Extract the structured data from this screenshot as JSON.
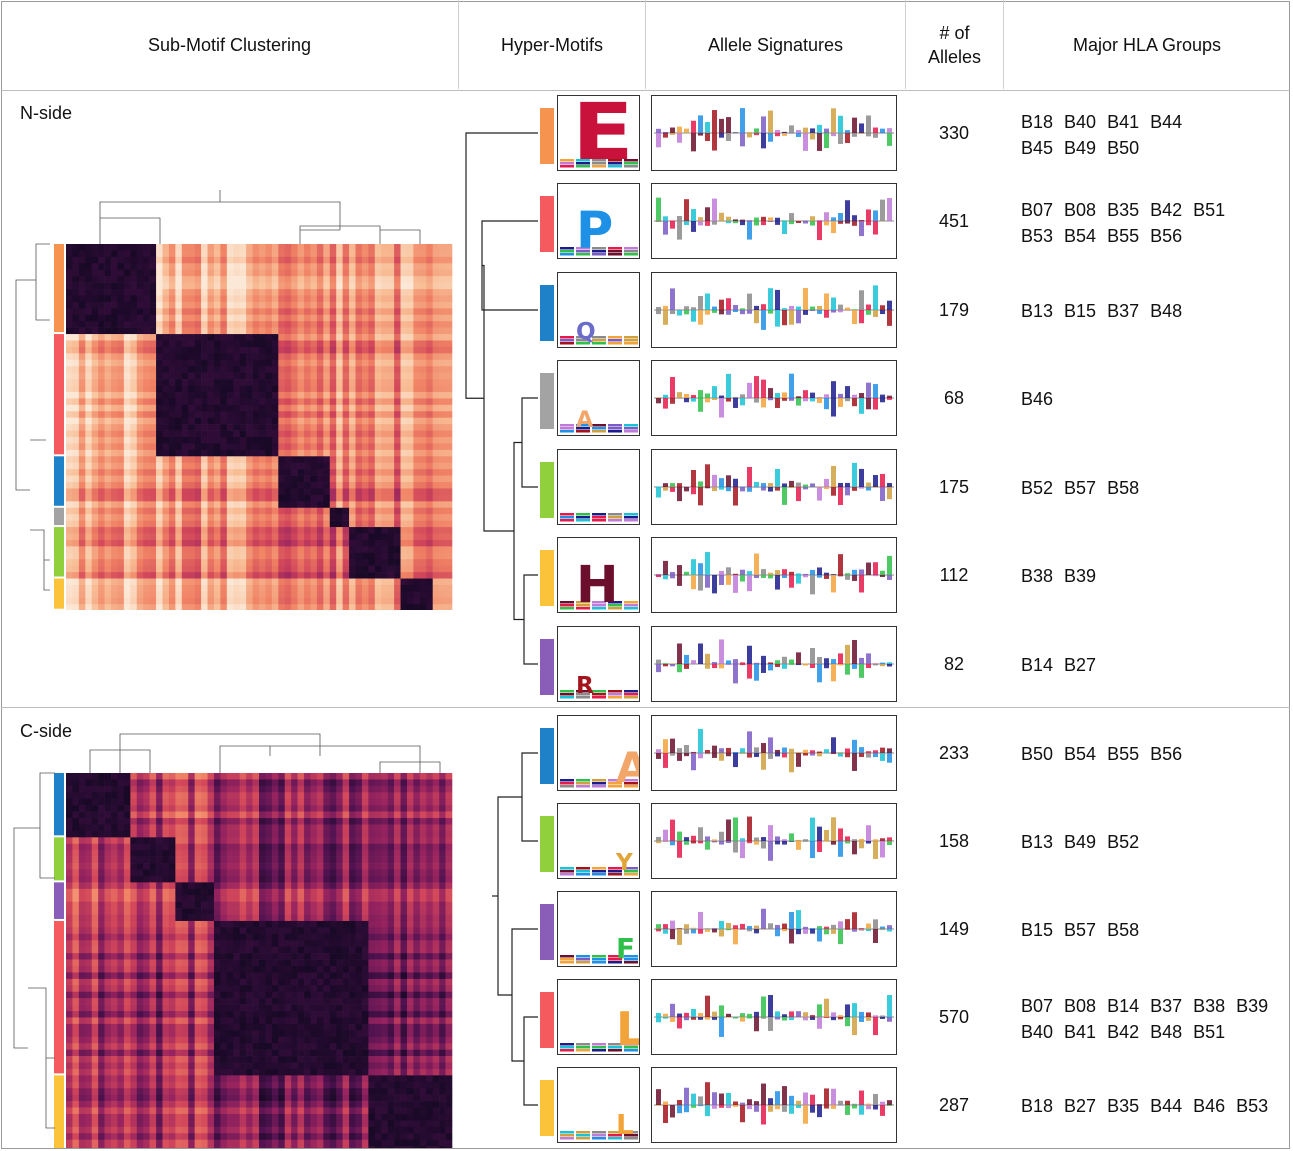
{
  "headers": {
    "clustering": "Sub-Motif Clustering",
    "hyper_motifs": "Hyper-Motifs",
    "signatures": "Allele Signatures",
    "num_alleles_line1": "# of",
    "num_alleles_line2": "Alleles",
    "hla_groups": "Major HLA Groups"
  },
  "sections": [
    {
      "label": "N-side",
      "rows": [
        {
          "color": "#F5934F",
          "letter": "E",
          "letter_color": "#C8123C",
          "letter_fill": 0.85,
          "count": "330",
          "groups": [
            "B18",
            "B40",
            "B41",
            "B44",
            "B45",
            "B49",
            "B50"
          ]
        },
        {
          "color": "#F55A5F",
          "letter": "P",
          "letter_color": "#1E90E6",
          "letter_fill": 0.55,
          "count": "451",
          "groups": [
            "B07",
            "B08",
            "B35",
            "B42",
            "B51",
            "B53",
            "B54",
            "B55",
            "B56"
          ]
        },
        {
          "color": "#1F82C8",
          "letter": "Q",
          "letter_color": "#6B6BCC",
          "letter_fill": 0.25,
          "count": "179",
          "groups": [
            "B13",
            "B15",
            "B37",
            "B48"
          ]
        },
        {
          "color": "#A3A3A3",
          "letter": "A",
          "letter_color": "#F2A66A",
          "letter_fill": 0.15,
          "count": "68",
          "groups": [
            "B46"
          ]
        },
        {
          "color": "#8FD03C",
          "letter": "",
          "letter_color": "#888888",
          "letter_fill": 0.0,
          "count": "175",
          "groups": [
            "B52",
            "B57",
            "B58"
          ]
        },
        {
          "color": "#FBC33A",
          "letter": "H",
          "letter_color": "#6B0F2C",
          "letter_fill": 0.55,
          "count": "112",
          "groups": [
            "B38",
            "B39"
          ]
        },
        {
          "color": "#8A5DB8",
          "letter": "R",
          "letter_color": "#A3131C",
          "letter_fill": 0.25,
          "count": "82",
          "groups": [
            "B14",
            "B27"
          ]
        }
      ]
    },
    {
      "label": "C-side",
      "rows": [
        {
          "color": "#1F82C8",
          "letter": "A",
          "letter_color": "#F2A66A",
          "letter_fill": 0.45,
          "count": "233",
          "groups": [
            "B50",
            "B54",
            "B55",
            "B56"
          ]
        },
        {
          "color": "#8FD03C",
          "letter": "Y",
          "letter_color": "#E0A43A",
          "letter_fill": 0.25,
          "count": "158",
          "groups": [
            "B13",
            "B49",
            "B52"
          ]
        },
        {
          "color": "#8A5DB8",
          "letter": "F",
          "letter_color": "#2EC04A",
          "letter_fill": 0.3,
          "count": "149",
          "groups": [
            "B15",
            "B57",
            "B58"
          ]
        },
        {
          "color": "#F55A5F",
          "letter": "L",
          "letter_color": "#F2A33A",
          "letter_fill": 0.5,
          "count": "570",
          "groups": [
            "B07",
            "B08",
            "B14",
            "B37",
            "B38",
            "B39",
            "B40",
            "B41",
            "B42",
            "B48",
            "B51"
          ]
        },
        {
          "color": "#FBC33A",
          "letter": "L",
          "letter_color": "#F2A33A",
          "letter_fill": 0.3,
          "count": "287",
          "groups": [
            "B18",
            "B27",
            "B35",
            "B44",
            "B46",
            "B53"
          ]
        }
      ]
    }
  ]
}
